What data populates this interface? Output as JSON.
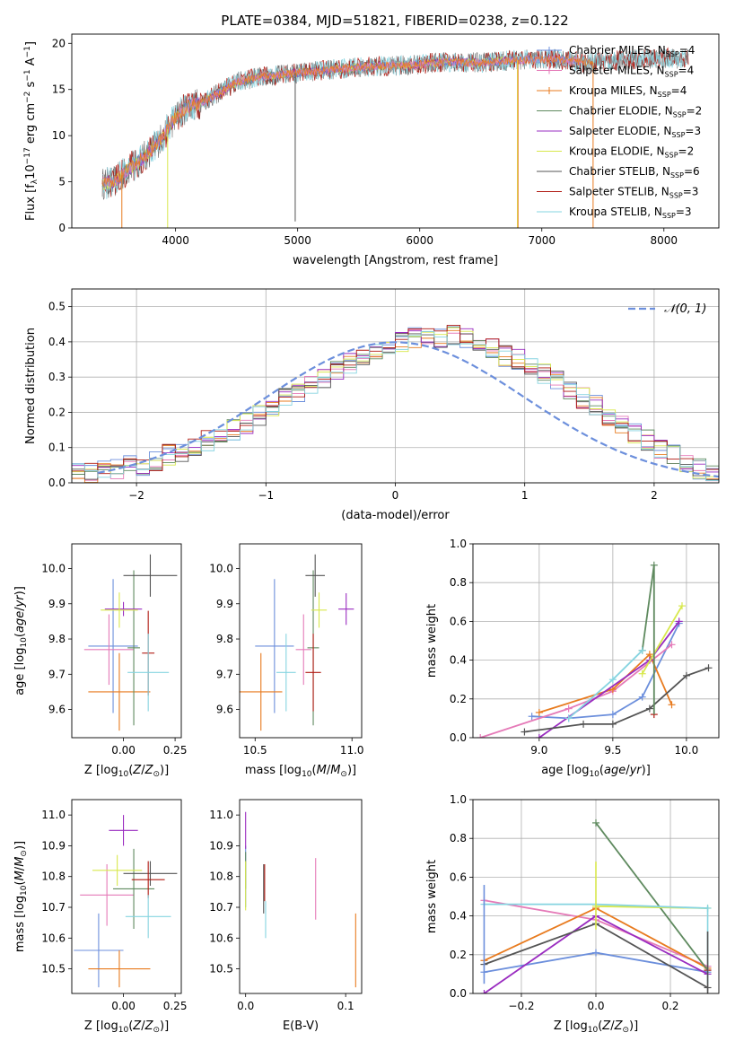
{
  "figure": {
    "title": "PLATE=0384, MJD=51821, FIBERID=0238, z=0.122"
  },
  "colors": {
    "Chabrier MILES": "#6c8fdc",
    "Salpeter MILES": "#e57ab8",
    "Kroupa MILES": "#e87b1f",
    "Chabrier ELODIE": "#5f8a5f",
    "Salpeter ELODIE": "#9a2cc0",
    "Kroupa ELODIE": "#d8e84c",
    "Chabrier STELIB": "#545454",
    "Salpeter STELIB": "#b01a12",
    "Kroupa STELIB": "#86d4e0"
  },
  "chart_data": [
    {
      "id": "spectrum",
      "type": "line",
      "xlabel": "wavelength [Angstrom, rest frame]",
      "ylabel": "Flux [f_λ10^-17 erg cm^-2 s^-1 A^-1]",
      "xlim": [
        3150,
        8450
      ],
      "ylim": [
        0,
        21
      ],
      "xticks": [
        "4000",
        "5000",
        "6000",
        "7000",
        "8000"
      ],
      "yticks": [
        "0",
        "5",
        "10",
        "15",
        "20"
      ],
      "grid": false,
      "legend_position": "right",
      "legend": [
        {
          "name": "Chabrier MILES",
          "label": "Chabrier MILES, N",
          "sub": "SSP",
          "suffix": "=4"
        },
        {
          "name": "Salpeter MILES",
          "label": "Salpeter MILES, N",
          "sub": "SSP",
          "suffix": "=4"
        },
        {
          "name": "Kroupa MILES",
          "label": "Kroupa MILES, N",
          "sub": "SSP",
          "suffix": "=4"
        },
        {
          "name": "Chabrier ELODIE",
          "label": "Chabrier ELODIE, N",
          "sub": "SSP",
          "suffix": "=2"
        },
        {
          "name": "Salpeter ELODIE",
          "label": "Salpeter ELODIE, N",
          "sub": "SSP",
          "suffix": "=3"
        },
        {
          "name": "Kroupa ELODIE",
          "label": "Kroupa ELODIE, N",
          "sub": "SSP",
          "suffix": "=2"
        },
        {
          "name": "Chabrier STELIB",
          "label": "Chabrier STELIB, N",
          "sub": "SSP",
          "suffix": "=6"
        },
        {
          "name": "Salpeter STELIB",
          "label": "Salpeter STELIB, N",
          "sub": "SSP",
          "suffix": "=3"
        },
        {
          "name": "Kroupa STELIB",
          "label": "Kroupa STELIB, N",
          "sub": "SSP",
          "suffix": "=3"
        }
      ],
      "continuum": [
        [
          3400,
          4.8
        ],
        [
          3500,
          5.0
        ],
        [
          3600,
          6.2
        ],
        [
          3700,
          7.2
        ],
        [
          3800,
          8.4
        ],
        [
          3900,
          10.0
        ],
        [
          4000,
          12.0
        ],
        [
          4100,
          13.2
        ],
        [
          4200,
          13.5
        ],
        [
          4300,
          14.2
        ],
        [
          4500,
          15.8
        ],
        [
          4700,
          16.4
        ],
        [
          5000,
          16.8
        ],
        [
          5300,
          17.2
        ],
        [
          5600,
          17.5
        ],
        [
          5900,
          17.6
        ],
        [
          6200,
          18.0
        ],
        [
          6500,
          17.9
        ],
        [
          6800,
          18.2
        ],
        [
          7100,
          18.3
        ],
        [
          7400,
          17.9
        ],
        [
          7700,
          18.2
        ],
        [
          8000,
          18.4
        ],
        [
          8200,
          18.3
        ]
      ],
      "sharp_features": [
        {
          "series": "Chabrier STELIB",
          "x": 4980,
          "to": 0.7
        },
        {
          "series": "Kroupa ELODIE",
          "x": 3935,
          "to": 0
        },
        {
          "series": "Kroupa ELODIE",
          "x": 6800,
          "to": 0
        },
        {
          "series": "Kroupa MILES",
          "x": 6805,
          "to": 0
        },
        {
          "series": "Kroupa MILES",
          "x": 7420,
          "to": 0
        },
        {
          "series": "Kroupa MILES",
          "x": 3560,
          "to": 0
        }
      ],
      "wavelength_ranges": {
        "Chabrier MILES": [
          3400,
          7350
        ],
        "Salpeter MILES": [
          3400,
          7350
        ],
        "Kroupa MILES": [
          3400,
          7420
        ],
        "Chabrier ELODIE": [
          3400,
          6800
        ],
        "Salpeter ELODIE": [
          3400,
          6800
        ],
        "Kroupa ELODIE": [
          3400,
          6800
        ],
        "Chabrier STELIB": [
          3400,
          8200
        ],
        "Salpeter STELIB": [
          3400,
          8200
        ],
        "Kroupa STELIB": [
          3400,
          8200
        ]
      }
    },
    {
      "id": "residuals",
      "type": "step",
      "xlabel": "(data-model)/error",
      "ylabel": "Normed distribution",
      "xlim": [
        -2.5,
        2.5
      ],
      "ylim": [
        0,
        0.55
      ],
      "xticks": [
        "−2",
        "−1",
        "0",
        "1",
        "2"
      ],
      "yticks": [
        "0.0",
        "0.1",
        "0.2",
        "0.3",
        "0.4",
        "0.5"
      ],
      "grid": true,
      "legend_position": "top-right",
      "gaussian_label": "N(0,1)",
      "bin_width": 0.1,
      "bin_start": -2.5,
      "hist": [
        0.03,
        0.03,
        0.04,
        0.04,
        0.05,
        0.05,
        0.06,
        0.08,
        0.09,
        0.1,
        0.12,
        0.14,
        0.15,
        0.17,
        0.19,
        0.22,
        0.24,
        0.26,
        0.28,
        0.3,
        0.32,
        0.34,
        0.35,
        0.37,
        0.38,
        0.4,
        0.41,
        0.42,
        0.41,
        0.42,
        0.41,
        0.4,
        0.38,
        0.36,
        0.35,
        0.33,
        0.31,
        0.29,
        0.26,
        0.24,
        0.22,
        0.19,
        0.17,
        0.14,
        0.12,
        0.1,
        0.08,
        0.06,
        0.04,
        0.03
      ]
    },
    {
      "id": "age_vs_Z",
      "type": "scatter",
      "xlabel": "Z [log10(Z/Z⊙)]",
      "ylabel": "age [log10(age/yr)]",
      "xlim": [
        -0.25,
        0.28
      ],
      "ylim": [
        9.52,
        10.07
      ],
      "xticks": [
        "0.00",
        "0.25"
      ],
      "yticks": [
        "9.6",
        "9.7",
        "9.8",
        "9.9",
        "10.0"
      ],
      "grid": false,
      "points": [
        {
          "series": "Chabrier MILES",
          "x": -0.05,
          "y": 9.78,
          "xerr": 0.12,
          "yerr": 0.19
        },
        {
          "series": "Salpeter MILES",
          "x": -0.07,
          "y": 9.77,
          "xerr": 0.12,
          "yerr": 0.1
        },
        {
          "series": "Kroupa MILES",
          "x": -0.02,
          "y": 9.65,
          "xerr": 0.15,
          "yerr": 0.11
        },
        {
          "series": "Chabrier ELODIE",
          "x": 0.05,
          "y": 9.775,
          "xerr": 0.03,
          "yerr": 0.22
        },
        {
          "series": "Salpeter ELODIE",
          "x": 0.0,
          "y": 9.885,
          "xerr": 0.09,
          "yerr": 0.02
        },
        {
          "series": "Kroupa ELODIE",
          "x": -0.02,
          "y": 9.882,
          "xerr": 0.09,
          "yerr": 0.05
        },
        {
          "series": "Chabrier STELIB",
          "x": 0.13,
          "y": 9.98,
          "xerr": 0.13,
          "yerr": 0.06
        },
        {
          "series": "Salpeter STELIB",
          "x": 0.12,
          "y": 9.76,
          "xerr": 0.03,
          "yerr": 0.12
        },
        {
          "series": "Kroupa STELIB",
          "x": 0.12,
          "y": 9.705,
          "xerr": 0.1,
          "yerr": 0.11
        }
      ]
    },
    {
      "id": "age_vs_mass",
      "type": "scatter",
      "xlabel": "mass [log10(M/M⊙)]",
      "ylabel": "",
      "xlim": [
        10.42,
        11.05
      ],
      "ylim": [
        9.52,
        10.07
      ],
      "xticks": [
        "10.5",
        "11.0"
      ],
      "yticks": [
        "9.6",
        "9.7",
        "9.8",
        "9.9",
        "10.0"
      ],
      "grid": false,
      "points": [
        {
          "series": "Chabrier MILES",
          "x": 10.6,
          "y": 9.78,
          "xerr": 0.1,
          "yerr": 0.19
        },
        {
          "series": "Salpeter MILES",
          "x": 10.75,
          "y": 9.77,
          "xerr": 0.04,
          "yerr": 0.1
        },
        {
          "series": "Kroupa MILES",
          "x": 10.53,
          "y": 9.65,
          "xerr": 0.11,
          "yerr": 0.11
        },
        {
          "series": "Chabrier ELODIE",
          "x": 10.8,
          "y": 9.775,
          "xerr": 0.03,
          "yerr": 0.22
        },
        {
          "series": "Salpeter ELODIE",
          "x": 10.97,
          "y": 9.885,
          "xerr": 0.04,
          "yerr": 0.045
        },
        {
          "series": "Kroupa ELODIE",
          "x": 10.83,
          "y": 9.882,
          "xerr": 0.04,
          "yerr": 0.05
        },
        {
          "series": "Chabrier STELIB",
          "x": 10.81,
          "y": 9.98,
          "xerr": 0.05,
          "yerr": 0.06
        },
        {
          "series": "Salpeter STELIB",
          "x": 10.8,
          "y": 9.705,
          "xerr": 0.04,
          "yerr": 0.11
        },
        {
          "series": "Kroupa STELIB",
          "x": 10.66,
          "y": 9.705,
          "xerr": 0.05,
          "yerr": 0.11
        }
      ]
    },
    {
      "id": "weight_vs_age",
      "type": "line",
      "xlabel": "age [log10(age/yr)]",
      "ylabel": "mass weight",
      "xlim": [
        8.55,
        10.22
      ],
      "ylim": [
        0,
        1
      ],
      "xticks": [
        "9.0",
        "9.5",
        "10.0"
      ],
      "yticks": [
        "0.0",
        "0.2",
        "0.4",
        "0.6",
        "0.8",
        "1.0"
      ],
      "grid": true,
      "series": [
        {
          "name": "Chabrier MILES",
          "x": [
            8.95,
            9.2,
            9.5,
            9.7,
            9.95
          ],
          "y": [
            0.11,
            0.1,
            0.12,
            0.21,
            0.59
          ]
        },
        {
          "name": "Salpeter MILES",
          "x": [
            8.6,
            9.2,
            9.5,
            9.9
          ],
          "y": [
            0.0,
            0.15,
            0.24,
            0.48
          ]
        },
        {
          "name": "Kroupa MILES",
          "x": [
            9.0,
            9.5,
            9.75,
            9.9
          ],
          "y": [
            0.13,
            0.25,
            0.43,
            0.17
          ]
        },
        {
          "name": "Chabrier ELODIE",
          "x": [
            9.7,
            9.78
          ],
          "y": [
            0.45,
            0.89
          ]
        },
        {
          "name": "Salpeter ELODIE",
          "x": [
            9.0,
            9.75,
            9.95
          ],
          "y": [
            0.0,
            0.4,
            0.6
          ]
        },
        {
          "name": "Kroupa ELODIE",
          "x": [
            9.7,
            9.97
          ],
          "y": [
            0.33,
            0.68
          ]
        },
        {
          "name": "Chabrier STELIB",
          "x": [
            8.9,
            9.3,
            9.5,
            9.75,
            10.0,
            10.15
          ],
          "y": [
            0.03,
            0.07,
            0.07,
            0.15,
            0.32,
            0.36
          ]
        },
        {
          "name": "Salpeter STELIB",
          "x": [
            9.78
          ],
          "y": [
            0.12
          ]
        },
        {
          "name": "Kroupa STELIB",
          "x": [
            9.2,
            9.5,
            9.7
          ],
          "y": [
            0.1,
            0.3,
            0.45
          ]
        }
      ]
    },
    {
      "id": "mass_vs_Z",
      "type": "scatter",
      "xlabel": "Z [log10(Z/Z⊙)]",
      "ylabel": "mass [log10(M/M⊙)]",
      "xlim": [
        -0.25,
        0.28
      ],
      "ylim": [
        10.42,
        11.05
      ],
      "xticks": [
        "0.00",
        "0.25"
      ],
      "yticks": [
        "10.5",
        "10.6",
        "10.7",
        "10.8",
        "10.9",
        "11.0"
      ],
      "grid": false,
      "points": [
        {
          "series": "Chabrier MILES",
          "x": -0.12,
          "y": 10.56,
          "xerr": 0.12,
          "yerr": 0.12
        },
        {
          "series": "Salpeter MILES",
          "x": -0.08,
          "y": 10.74,
          "xerr": 0.13,
          "yerr": 0.1
        },
        {
          "series": "Kroupa MILES",
          "x": -0.02,
          "y": 10.5,
          "xerr": 0.15,
          "yerr": 0.06
        },
        {
          "series": "Chabrier ELODIE",
          "x": 0.05,
          "y": 10.76,
          "xerr": 0.1,
          "yerr": 0.13
        },
        {
          "series": "Salpeter ELODIE",
          "x": 0.0,
          "y": 10.95,
          "xerr": 0.07,
          "yerr": 0.05
        },
        {
          "series": "Kroupa ELODIE",
          "x": -0.03,
          "y": 10.82,
          "xerr": 0.12,
          "yerr": 0.05
        },
        {
          "series": "Chabrier STELIB",
          "x": 0.13,
          "y": 10.81,
          "xerr": 0.13,
          "yerr": 0.04
        },
        {
          "series": "Salpeter STELIB",
          "x": 0.12,
          "y": 10.79,
          "xerr": 0.08,
          "yerr": 0.06
        },
        {
          "series": "Kroupa STELIB",
          "x": 0.12,
          "y": 10.67,
          "xerr": 0.11,
          "yerr": 0.07
        }
      ]
    },
    {
      "id": "mass_vs_ebv",
      "type": "scatter",
      "xlabel": "E(B-V)",
      "ylabel": "",
      "xlim": [
        -0.006,
        0.116
      ],
      "ylim": [
        10.42,
        11.05
      ],
      "xticks": [
        "0.0",
        "0.1"
      ],
      "yticks": [
        "10.5",
        "10.6",
        "10.7",
        "10.8",
        "10.9",
        "11.0"
      ],
      "grid": false,
      "points": [
        {
          "series": "Chabrier MILES",
          "x": 0.0,
          "y": 10.8,
          "xerr": 0,
          "yerr": 0.1
        },
        {
          "series": "Salpeter MILES",
          "x": 0.07,
          "y": 10.76,
          "xerr": 0,
          "yerr": 0.1
        },
        {
          "series": "Kroupa MILES",
          "x": 0.11,
          "y": 10.56,
          "xerr": 0,
          "yerr": 0.12
        },
        {
          "series": "Chabrier ELODIE",
          "x": 0.0,
          "y": 10.82,
          "xerr": 0,
          "yerr": 0.06
        },
        {
          "series": "Salpeter ELODIE",
          "x": 0.0,
          "y": 10.95,
          "xerr": 0,
          "yerr": 0.06
        },
        {
          "series": "Kroupa ELODIE",
          "x": 0.0,
          "y": 10.77,
          "xerr": 0,
          "yerr": 0.08
        },
        {
          "series": "Chabrier STELIB",
          "x": 0.018,
          "y": 10.76,
          "xerr": 0,
          "yerr": 0.08
        },
        {
          "series": "Salpeter STELIB",
          "x": 0.019,
          "y": 10.78,
          "xerr": 0,
          "yerr": 0.06
        },
        {
          "series": "Kroupa STELIB",
          "x": 0.02,
          "y": 10.66,
          "xerr": 0,
          "yerr": 0.06
        }
      ]
    },
    {
      "id": "weight_vs_Z",
      "type": "line",
      "xlabel": "Z [log10(Z/Z⊙)]",
      "ylabel": "mass weight",
      "xlim": [
        -0.33,
        0.33
      ],
      "ylim": [
        0,
        1
      ],
      "xticks": [
        "−0.2",
        "0.0",
        "0.2"
      ],
      "yticks": [
        "0.0",
        "0.2",
        "0.4",
        "0.6",
        "0.8",
        "1.0"
      ],
      "grid": true,
      "series": [
        {
          "name": "Chabrier MILES",
          "x": [
            -0.3,
            0.0,
            0.3
          ],
          "y": [
            0.11,
            0.21,
            0.11
          ]
        },
        {
          "name": "Salpeter MILES",
          "x": [
            -0.3,
            0.0,
            0.3
          ],
          "y": [
            0.48,
            0.38,
            0.14
          ]
        },
        {
          "name": "Kroupa MILES",
          "x": [
            -0.3,
            0.0,
            0.3
          ],
          "y": [
            0.17,
            0.44,
            0.13
          ]
        },
        {
          "name": "Chabrier ELODIE",
          "x": [
            0.0,
            0.3
          ],
          "y": [
            0.88,
            0.12
          ]
        },
        {
          "name": "Salpeter ELODIE",
          "x": [
            -0.3,
            0.0,
            0.3
          ],
          "y": [
            0.0,
            0.4,
            0.1
          ]
        },
        {
          "name": "Kroupa ELODIE",
          "x": [
            0.0,
            0.3
          ],
          "y": [
            0.45,
            0.44
          ]
        },
        {
          "name": "Chabrier STELIB",
          "x": [
            -0.3,
            0.0,
            0.3
          ],
          "y": [
            0.15,
            0.36,
            0.03
          ]
        },
        {
          "name": "Salpeter STELIB",
          "x": [
            0.3
          ],
          "y": [
            0.12
          ]
        },
        {
          "name": "Kroupa STELIB",
          "x": [
            -0.3,
            0.0,
            0.3
          ],
          "y": [
            0.46,
            0.46,
            0.44
          ]
        }
      ],
      "vertical_ranges": [
        {
          "series": "Chabrier MILES",
          "x": -0.3,
          "y": [
            0.05,
            0.56
          ]
        },
        {
          "series": "Kroupa ELODIE",
          "x": 0.0,
          "y": [
            0.33,
            0.68
          ]
        },
        {
          "series": "Kroupa STELIB",
          "x": 0.3,
          "y": [
            0.05,
            0.45
          ]
        },
        {
          "series": "Chabrier STELIB",
          "x": 0.3,
          "y": [
            0.0,
            0.32
          ]
        }
      ]
    }
  ]
}
